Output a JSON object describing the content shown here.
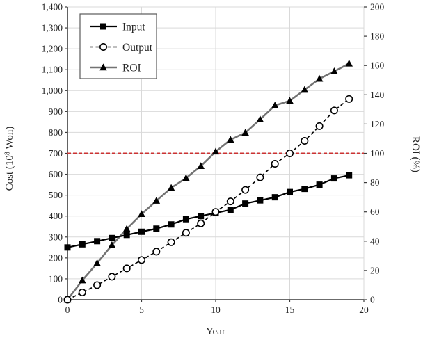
{
  "chart_data": {
    "type": "line",
    "title": "",
    "xlabel": "Year",
    "ylabel_left": {
      "pre": "Cost (10",
      "sup": "8",
      "post": " Won)",
      "full": "Cost (10⁸ Won)"
    },
    "ylabel_right": "ROI (%)",
    "x": [
      0,
      1,
      2,
      3,
      4,
      5,
      6,
      7,
      8,
      9,
      10,
      11,
      12,
      13,
      14,
      15,
      16,
      17,
      18,
      19
    ],
    "x_range": [
      0,
      20
    ],
    "x_ticks": [
      0,
      5,
      10,
      15,
      20
    ],
    "left_range": [
      0,
      1400
    ],
    "left_tick_step": 100,
    "right_range": [
      0,
      200
    ],
    "right_tick_step": 20,
    "grid": "on",
    "series": [
      {
        "name": "Input",
        "axis": "left",
        "marker": "square",
        "line": "solid",
        "color": "#000000",
        "values": [
          250,
          265,
          280,
          295,
          310,
          325,
          340,
          360,
          385,
          400,
          415,
          430,
          460,
          475,
          490,
          515,
          530,
          550,
          580,
          595
        ]
      },
      {
        "name": "Output",
        "axis": "left",
        "marker": "circle-open",
        "line": "dashed",
        "color": "#000000",
        "values": [
          0,
          35,
          70,
          110,
          150,
          190,
          230,
          275,
          320,
          365,
          420,
          470,
          525,
          585,
          650,
          700,
          760,
          830,
          905,
          960
        ]
      },
      {
        "name": "ROI",
        "axis": "right",
        "marker": "triangle",
        "line": "solid",
        "color": "#737373",
        "marker_color": "#000000",
        "values": [
          0,
          13.2,
          25.0,
          37.3,
          48.4,
          58.5,
          67.6,
          76.4,
          83.1,
          91.3,
          101.2,
          109.3,
          114.1,
          123.2,
          132.7,
          135.9,
          143.4,
          150.9,
          156.0,
          161.3
        ]
      }
    ],
    "reference_line": {
      "axis": "right",
      "value": 100,
      "style": "dashed",
      "color": "#cc3333"
    },
    "legend": {
      "position": "top-left",
      "entries": [
        "Input",
        "Output",
        "ROI"
      ]
    },
    "colors": {
      "grid": "#d9d9d9",
      "axis": "#3a3a3a",
      "tick": "#3a3a3a",
      "text": "#262626",
      "legend_border": "#595959",
      "background": "#ffffff"
    }
  }
}
